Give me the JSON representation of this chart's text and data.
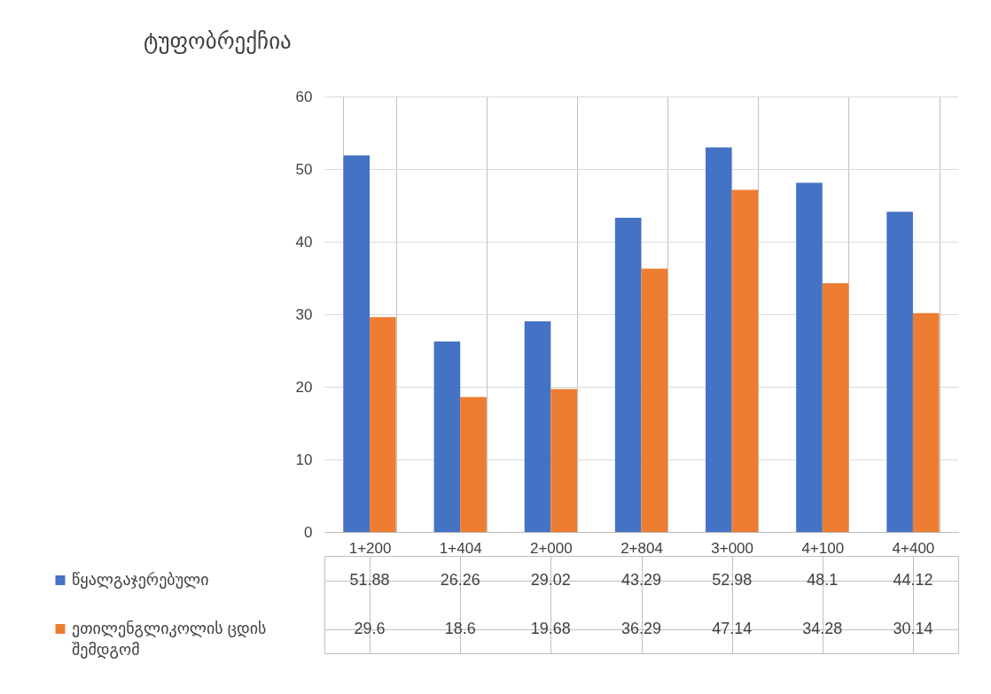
{
  "chart_data": {
    "type": "bar",
    "title": "ტუფობრექჩია",
    "categories": [
      "1+200",
      "1+404",
      "2+000",
      "2+804",
      "3+000",
      "4+100",
      "4+400"
    ],
    "series": [
      {
        "name": "წყალგაჯერებული",
        "color": "#4472c4",
        "values": [
          51.88,
          26.26,
          29.02,
          43.29,
          52.98,
          48.1,
          44.12
        ]
      },
      {
        "name": "ეთილენგლიკოლის ცდის შემდგომ",
        "color": "#ed7d31",
        "values": [
          29.6,
          18.6,
          19.68,
          36.29,
          47.14,
          34.28,
          30.14
        ]
      }
    ],
    "ylim": [
      0,
      60
    ],
    "yticks": [
      0,
      10,
      20,
      30,
      40,
      50,
      60
    ],
    "grid": "y",
    "legend": "bottom",
    "data_labels": true
  }
}
